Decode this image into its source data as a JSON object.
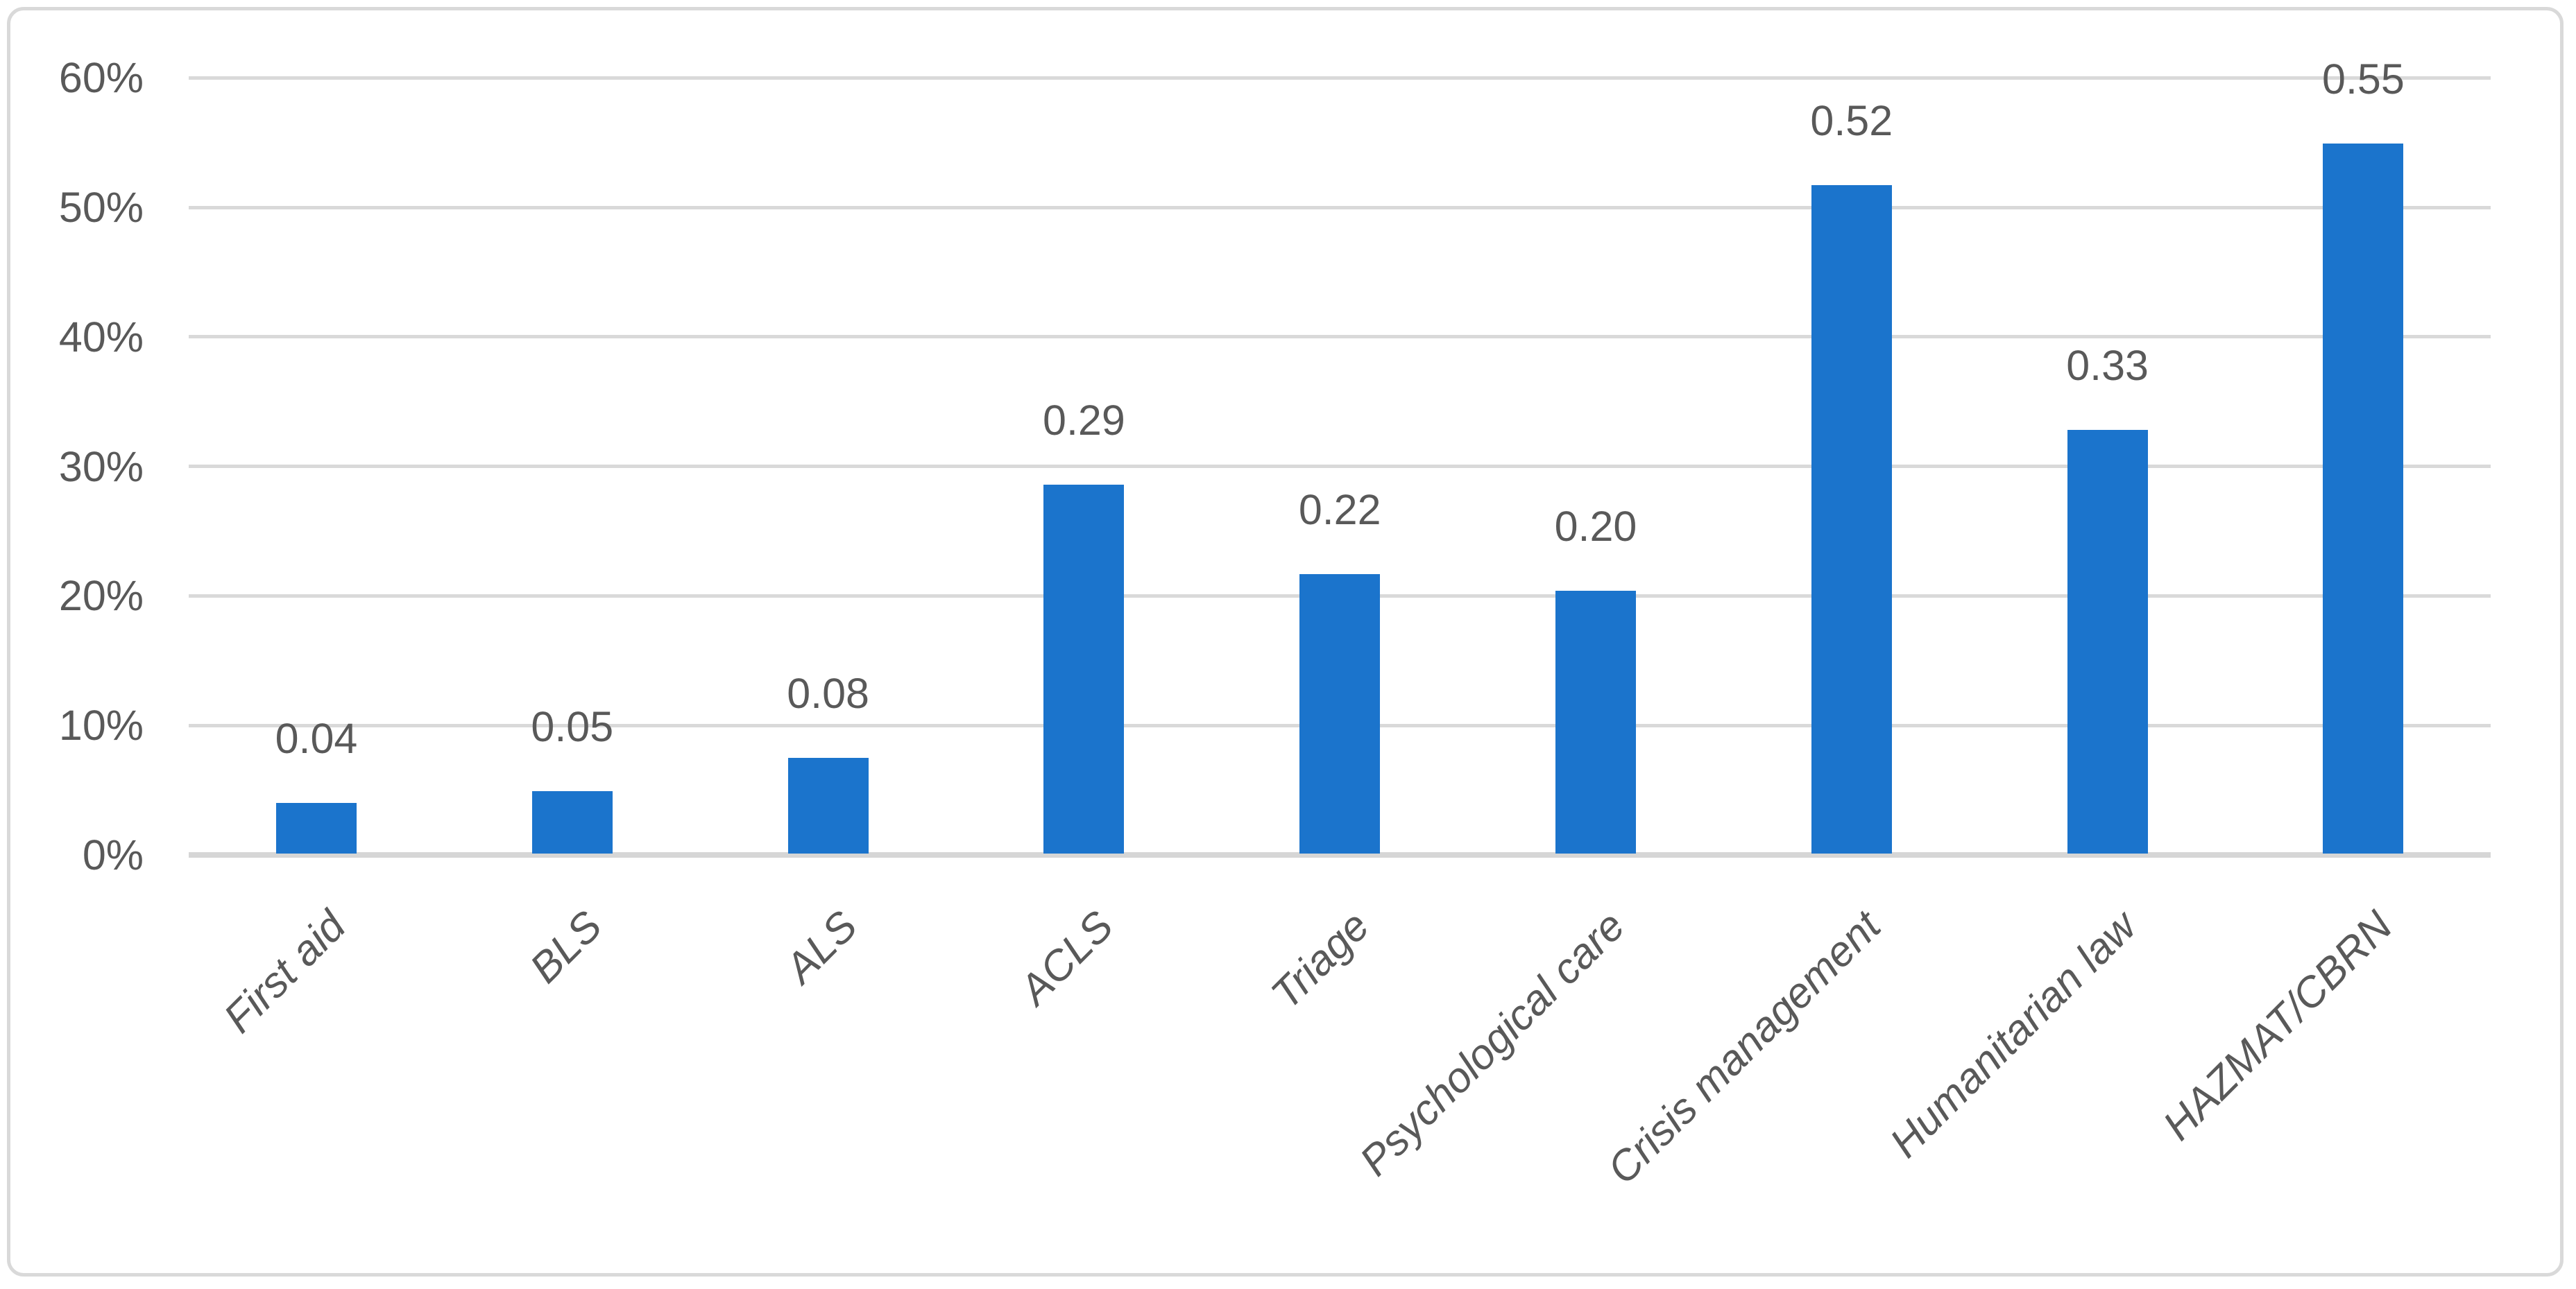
{
  "chart_data": {
    "type": "bar",
    "title": "",
    "xlabel": "",
    "ylabel": "",
    "categories": [
      "First aid",
      "BLS",
      "ALS",
      "ACLS",
      "Triage",
      "Psychological care",
      "Crisis management",
      "Humanitarian law",
      "HAZMAT/CBRN"
    ],
    "values": [
      0.04,
      0.05,
      0.08,
      0.29,
      0.22,
      0.2,
      0.52,
      0.33,
      0.55
    ],
    "data_labels": [
      "0.04",
      "0.05",
      "0.08",
      "0.29",
      "0.22",
      "0.20",
      "0.52",
      "0.33",
      "0.55"
    ],
    "bar_heights_pct_estimated": [
      4.0,
      4.9,
      7.5,
      28.6,
      21.7,
      20.4,
      51.7,
      32.8,
      54.9
    ],
    "y_ticks": [
      "0%",
      "10%",
      "20%",
      "30%",
      "40%",
      "50%",
      "60%"
    ],
    "ylim_pct": [
      0,
      60
    ],
    "grid": true,
    "legend": false,
    "colors": {
      "bar": "#1B74CC",
      "gridline": "#D9D9D9",
      "axis_line": "#D6D6D6",
      "labels": "#595959",
      "border": "#D9D9D9",
      "background": "#FFFFFF"
    }
  }
}
